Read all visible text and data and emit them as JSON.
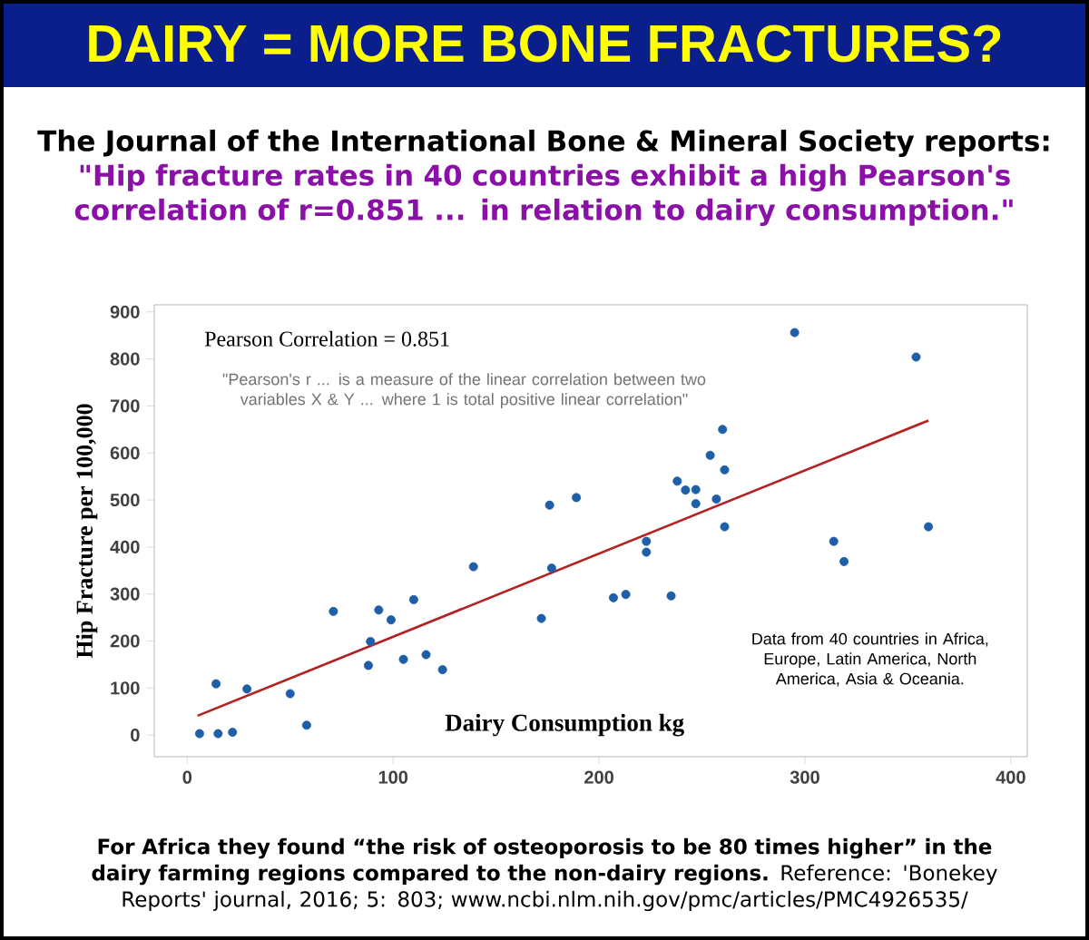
{
  "chart_data": {
    "type": "scatter",
    "title": "DAIRY = MORE BONE FRACTURES?",
    "subtitle": "The Journal of the International Bone & Mineral Society reports:",
    "xlabel": "Dairy Consumption kg",
    "ylabel": "Hip Fracture per 100,000",
    "annotations": [
      "\"Hip fracture rates in 40 countries exhibit a high Pearson's correlation of r=0.851 ... in relation to dairy consumption.\"",
      "Pearson Correlation = 0.851",
      "\"Pearson's r ... is a measure of the linear correlation between two variables X & Y ... where 1 is total positive linear correlation\"",
      "Data from 40 countries in Africa, Europe, Latin America, North America, Asia & Oceania.",
      "**For Africa they found “the risk of osteoporosis to be 80 times higher” in the dairy farming regions compared to the non-dairy regions.** Reference: 'Bonekey Reports' journal, 2016; 5: 803; www.ncbi.nlm.nih.gov/pmc/articles/PMC4926535/"
    ],
    "series": [
      {
        "color": "#1f5fa8",
        "x": [
          6,
          15,
          22,
          14,
          29,
          50,
          58,
          71,
          88,
          89,
          93,
          99,
          105,
          110,
          116,
          124,
          139,
          172,
          176,
          177,
          189,
          207,
          213,
          223,
          223,
          235,
          238,
          242,
          247,
          247,
          254,
          257,
          260,
          261,
          261,
          295,
          354,
          314,
          319,
          360
        ],
        "values": [
          3,
          3,
          6,
          109,
          98,
          88,
          21,
          263,
          148,
          199,
          266,
          245,
          161,
          288,
          171,
          139,
          358,
          248,
          489,
          355,
          505,
          292,
          299,
          412,
          389,
          296,
          540,
          521,
          522,
          492,
          595,
          502,
          650,
          564,
          443,
          856,
          804,
          412,
          369,
          443
        ]
      },
      {
        "type": "line",
        "marker": "none",
        "color": "#b22222",
        "x": [
          5,
          360
        ],
        "values": [
          41,
          669
        ]
      }
    ],
    "xlim": [
      -16,
      408
    ],
    "ylim": [
      -46,
      915
    ],
    "xticks": [
      0,
      100,
      200,
      300,
      400
    ],
    "yticks": [
      0,
      100,
      200,
      300,
      400,
      500,
      600,
      700,
      800,
      900
    ],
    "marker": "circle",
    "grid": false
  }
}
